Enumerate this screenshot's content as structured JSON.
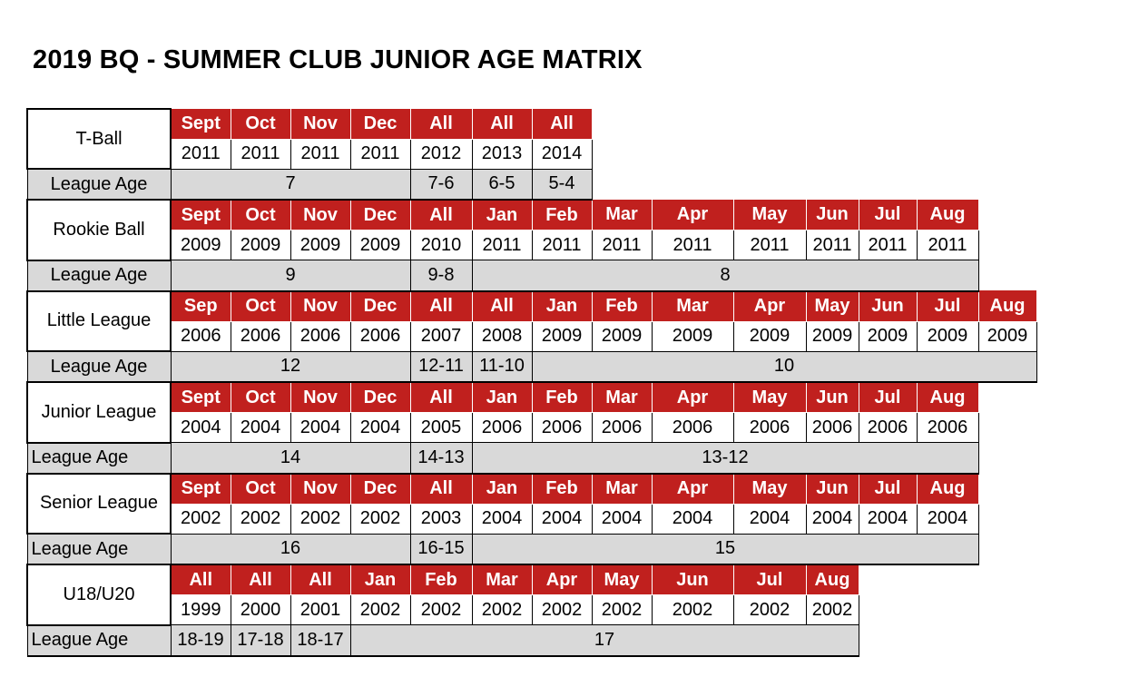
{
  "title": "2019 BQ - SUMMER CLUB JUNIOR AGE MATRIX",
  "divisions": [
    {
      "name": "T-Ball",
      "label_align": "center",
      "months": [
        "Sept",
        "Oct",
        "Nov",
        "Dec",
        "All",
        "All",
        "All"
      ],
      "years": [
        "2011",
        "2011",
        "2011",
        "2011",
        "2012",
        "2013",
        "2014"
      ],
      "league_age_label": "League Age",
      "ages": [
        {
          "text": "7",
          "span": 4
        },
        {
          "text": "7-6",
          "span": 1
        },
        {
          "text": "6-5",
          "span": 1
        },
        {
          "text": "5-4",
          "span": 1
        }
      ]
    },
    {
      "name": "Rookie Ball",
      "label_align": "center",
      "months": [
        "Sept",
        "Oct",
        "Nov",
        "Dec",
        "All",
        "Jan",
        "Feb",
        "Mar",
        "Apr",
        "May",
        "Jun",
        "Jul",
        "Aug"
      ],
      "years": [
        "2009",
        "2009",
        "2009",
        "2009",
        "2010",
        "2011",
        "2011",
        "2011",
        "2011",
        "2011",
        "2011",
        "2011",
        "2011"
      ],
      "league_age_label": "League Age",
      "ages": [
        {
          "text": "9",
          "span": 4
        },
        {
          "text": "9-8",
          "span": 1
        },
        {
          "text": "8",
          "span": 8
        }
      ]
    },
    {
      "name": "Little League",
      "label_align": "center",
      "months": [
        "Sep",
        "Oct",
        "Nov",
        "Dec",
        "All",
        "All",
        "Jan",
        "Feb",
        "Mar",
        "Apr",
        "May",
        "Jun",
        "Jul",
        "Aug"
      ],
      "years": [
        "2006",
        "2006",
        "2006",
        "2006",
        "2007",
        "2008",
        "2009",
        "2009",
        "2009",
        "2009",
        "2009",
        "2009",
        "2009",
        "2009"
      ],
      "league_age_label": "League Age",
      "ages": [
        {
          "text": "12",
          "span": 4
        },
        {
          "text": "12-11",
          "span": 1
        },
        {
          "text": "11-10",
          "span": 1
        },
        {
          "text": "10",
          "span": 8
        }
      ]
    },
    {
      "name": "Junior League",
      "label_align": "left",
      "months": [
        "Sept",
        "Oct",
        "Nov",
        "Dec",
        "All",
        "Jan",
        "Feb",
        "Mar",
        "Apr",
        "May",
        "Jun",
        "Jul",
        "Aug"
      ],
      "years": [
        "2004",
        "2004",
        "2004",
        "2004",
        "2005",
        "2006",
        "2006",
        "2006",
        "2006",
        "2006",
        "2006",
        "2006",
        "2006"
      ],
      "league_age_label": "League Age",
      "ages": [
        {
          "text": "14",
          "span": 4
        },
        {
          "text": "14-13",
          "span": 1
        },
        {
          "text": "13-12",
          "span": 8
        }
      ]
    },
    {
      "name": "Senior League",
      "label_align": "left",
      "months": [
        "Sept",
        "Oct",
        "Nov",
        "Dec",
        "All",
        "Jan",
        "Feb",
        "Mar",
        "Apr",
        "May",
        "Jun",
        "Jul",
        "Aug"
      ],
      "years": [
        "2002",
        "2002",
        "2002",
        "2002",
        "2003",
        "2004",
        "2004",
        "2004",
        "2004",
        "2004",
        "2004",
        "2004",
        "2004"
      ],
      "league_age_label": "League Age",
      "ages": [
        {
          "text": "16",
          "span": 4
        },
        {
          "text": "16-15",
          "span": 1
        },
        {
          "text": "15",
          "span": 8
        }
      ]
    },
    {
      "name": "U18/U20",
      "label_align": "left",
      "months": [
        "All",
        "All",
        "All",
        "Jan",
        "Feb",
        "Mar",
        "Apr",
        "May",
        "Jun",
        "Jul",
        "Aug"
      ],
      "years": [
        "1999",
        "2000",
        "2001",
        "2002",
        "2002",
        "2002",
        "2002",
        "2002",
        "2002",
        "2002",
        "2002"
      ],
      "league_age_label": "League Age",
      "ages": [
        {
          "text": "18-19",
          "span": 1
        },
        {
          "text": "17-18",
          "span": 1
        },
        {
          "text": "18-17",
          "span": 1
        },
        {
          "text": "17",
          "span": 8
        }
      ]
    }
  ]
}
